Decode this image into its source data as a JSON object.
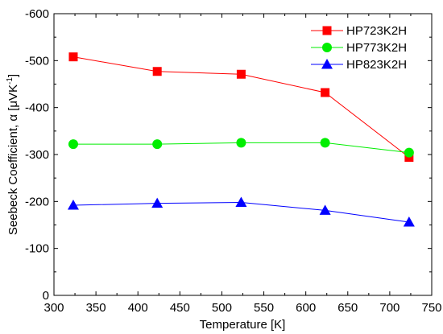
{
  "chart_data": {
    "type": "line",
    "title": "",
    "xlabel": "Temperature [K]",
    "ylabel": "Seebeck Coefficient, α [μVK⁻¹]",
    "ylabel_parts": {
      "main": "Seebeck Coefficient, α [μVK",
      "sup": "-1",
      "close": "]"
    },
    "xlim": [
      300,
      750
    ],
    "ylim": [
      0,
      -600
    ],
    "y_axis_inverted": true,
    "x_ticks": [
      300,
      350,
      400,
      450,
      500,
      550,
      600,
      650,
      700,
      750
    ],
    "x_tick_labels": [
      "300",
      "350",
      "400",
      "450",
      "500",
      "550",
      "600",
      "650",
      "700",
      "750"
    ],
    "y_ticks": [
      0,
      -100,
      -200,
      -300,
      -400,
      -500,
      -600
    ],
    "y_tick_labels": [
      "0",
      "-100",
      "-200",
      "-300",
      "-400",
      "-500",
      "-600"
    ],
    "x": [
      323,
      423,
      523,
      623,
      723
    ],
    "series": [
      {
        "name": "HP723K2H",
        "color": "#ff0000",
        "marker": "square",
        "values": [
          -508,
          -477,
          -471,
          -432,
          -294
        ]
      },
      {
        "name": "HP773K2H",
        "color": "#00ee00",
        "marker": "circle",
        "values": [
          -322,
          -322,
          -325,
          -325,
          -304
        ]
      },
      {
        "name": "HP823K2H",
        "color": "#0000ff",
        "marker": "triangle",
        "values": [
          -192,
          -196,
          -198,
          -181,
          -156
        ]
      }
    ],
    "legend_position": "top-right",
    "grid": false
  }
}
